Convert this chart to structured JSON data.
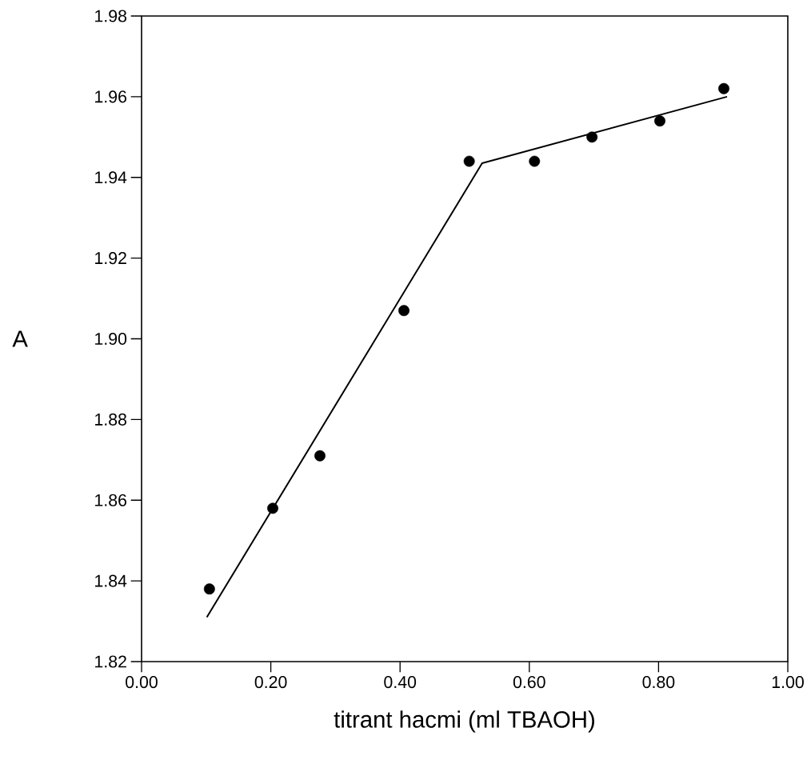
{
  "chart_data": {
    "type": "scatter",
    "xlabel": "titrant hacmi (ml TBAOH)",
    "ylabel": "A",
    "xlim": [
      0,
      1
    ],
    "ylim": [
      1.82,
      1.98
    ],
    "xticks": [
      {
        "value": 0,
        "label": "0.00"
      },
      {
        "value": 0.2,
        "label": "0.20"
      },
      {
        "value": 0.4,
        "label": "0.40"
      },
      {
        "value": 0.6,
        "label": "0.60"
      },
      {
        "value": 0.8,
        "label": "0.80"
      },
      {
        "value": 1,
        "label": "1.00"
      }
    ],
    "yticks": [
      1.82,
      1.84,
      1.86,
      1.88,
      {
        "value": 1.9,
        "label": "1.90"
      },
      1.92,
      1.94,
      1.96,
      1.98
    ],
    "grid": false,
    "series": [
      {
        "marker": "circle",
        "color": "#000000",
        "x": [
          0.105,
          0.203,
          0.276,
          0.406,
          0.507,
          0.608,
          0.697,
          0.802,
          0.901
        ],
        "values": [
          1.838,
          1.858,
          1.871,
          1.907,
          1.944,
          1.944,
          1.95,
          1.954,
          1.962
        ]
      },
      {
        "type": "line",
        "marker": "none",
        "line_style": "solid",
        "color": "#000000",
        "x": [
          0.101,
          0.527,
          0.906
        ],
        "values": [
          1.831,
          1.9435,
          1.96
        ]
      }
    ]
  }
}
